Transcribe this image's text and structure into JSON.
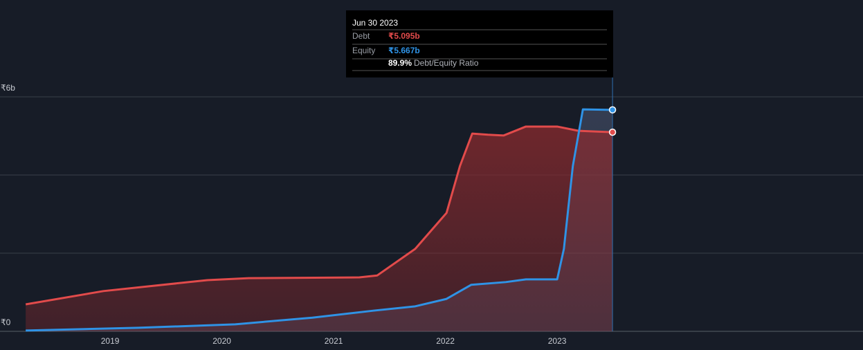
{
  "chart_data": {
    "type": "area-line",
    "xlim": [
      2018.015,
      2025.736
    ],
    "xticks": [
      2019,
      2020,
      2021,
      2022,
      2023
    ],
    "ylim": [
      0,
      6
    ],
    "yticks": [
      {
        "value": 0,
        "label": "₹0"
      },
      {
        "value": 2,
        "label": null
      },
      {
        "value": 4,
        "label": null
      },
      {
        "value": 6,
        "label": "₹6b"
      }
    ],
    "grid": true,
    "series": [
      {
        "name": "Debt",
        "color": "#e24b4b",
        "x": [
          2018.245,
          2018.94,
          2019.87,
          2020.24,
          2021.23,
          2021.39,
          2021.73,
          2022.01,
          2022.13,
          2022.24,
          2022.38,
          2022.52,
          2022.72,
          2023.0,
          2023.19,
          2023.495
        ],
        "values": [
          0.69,
          1.03,
          1.31,
          1.36,
          1.38,
          1.43,
          2.11,
          3.03,
          4.23,
          5.06,
          5.03,
          5.01,
          5.24,
          5.24,
          5.13,
          5.095
        ]
      },
      {
        "name": "Equity",
        "color": "#2f93e6",
        "x": [
          2018.245,
          2019.25,
          2020.12,
          2020.81,
          2021.36,
          2021.73,
          2022.01,
          2022.23,
          2022.54,
          2022.72,
          2023.0,
          2023.06,
          2023.14,
          2023.23,
          2023.495
        ],
        "values": [
          0.02,
          0.09,
          0.18,
          0.35,
          0.53,
          0.64,
          0.83,
          1.19,
          1.26,
          1.33,
          1.33,
          2.11,
          4.23,
          5.68,
          5.667
        ]
      }
    ],
    "tooltip": {
      "date": "Jun 30 2023",
      "rows": [
        {
          "label": "Debt",
          "value": "₹5.095b"
        },
        {
          "label": "Equity",
          "value": "₹5.667b"
        }
      ],
      "ratio": "89.9%",
      "ratio_label": "Debt/Equity Ratio"
    }
  }
}
